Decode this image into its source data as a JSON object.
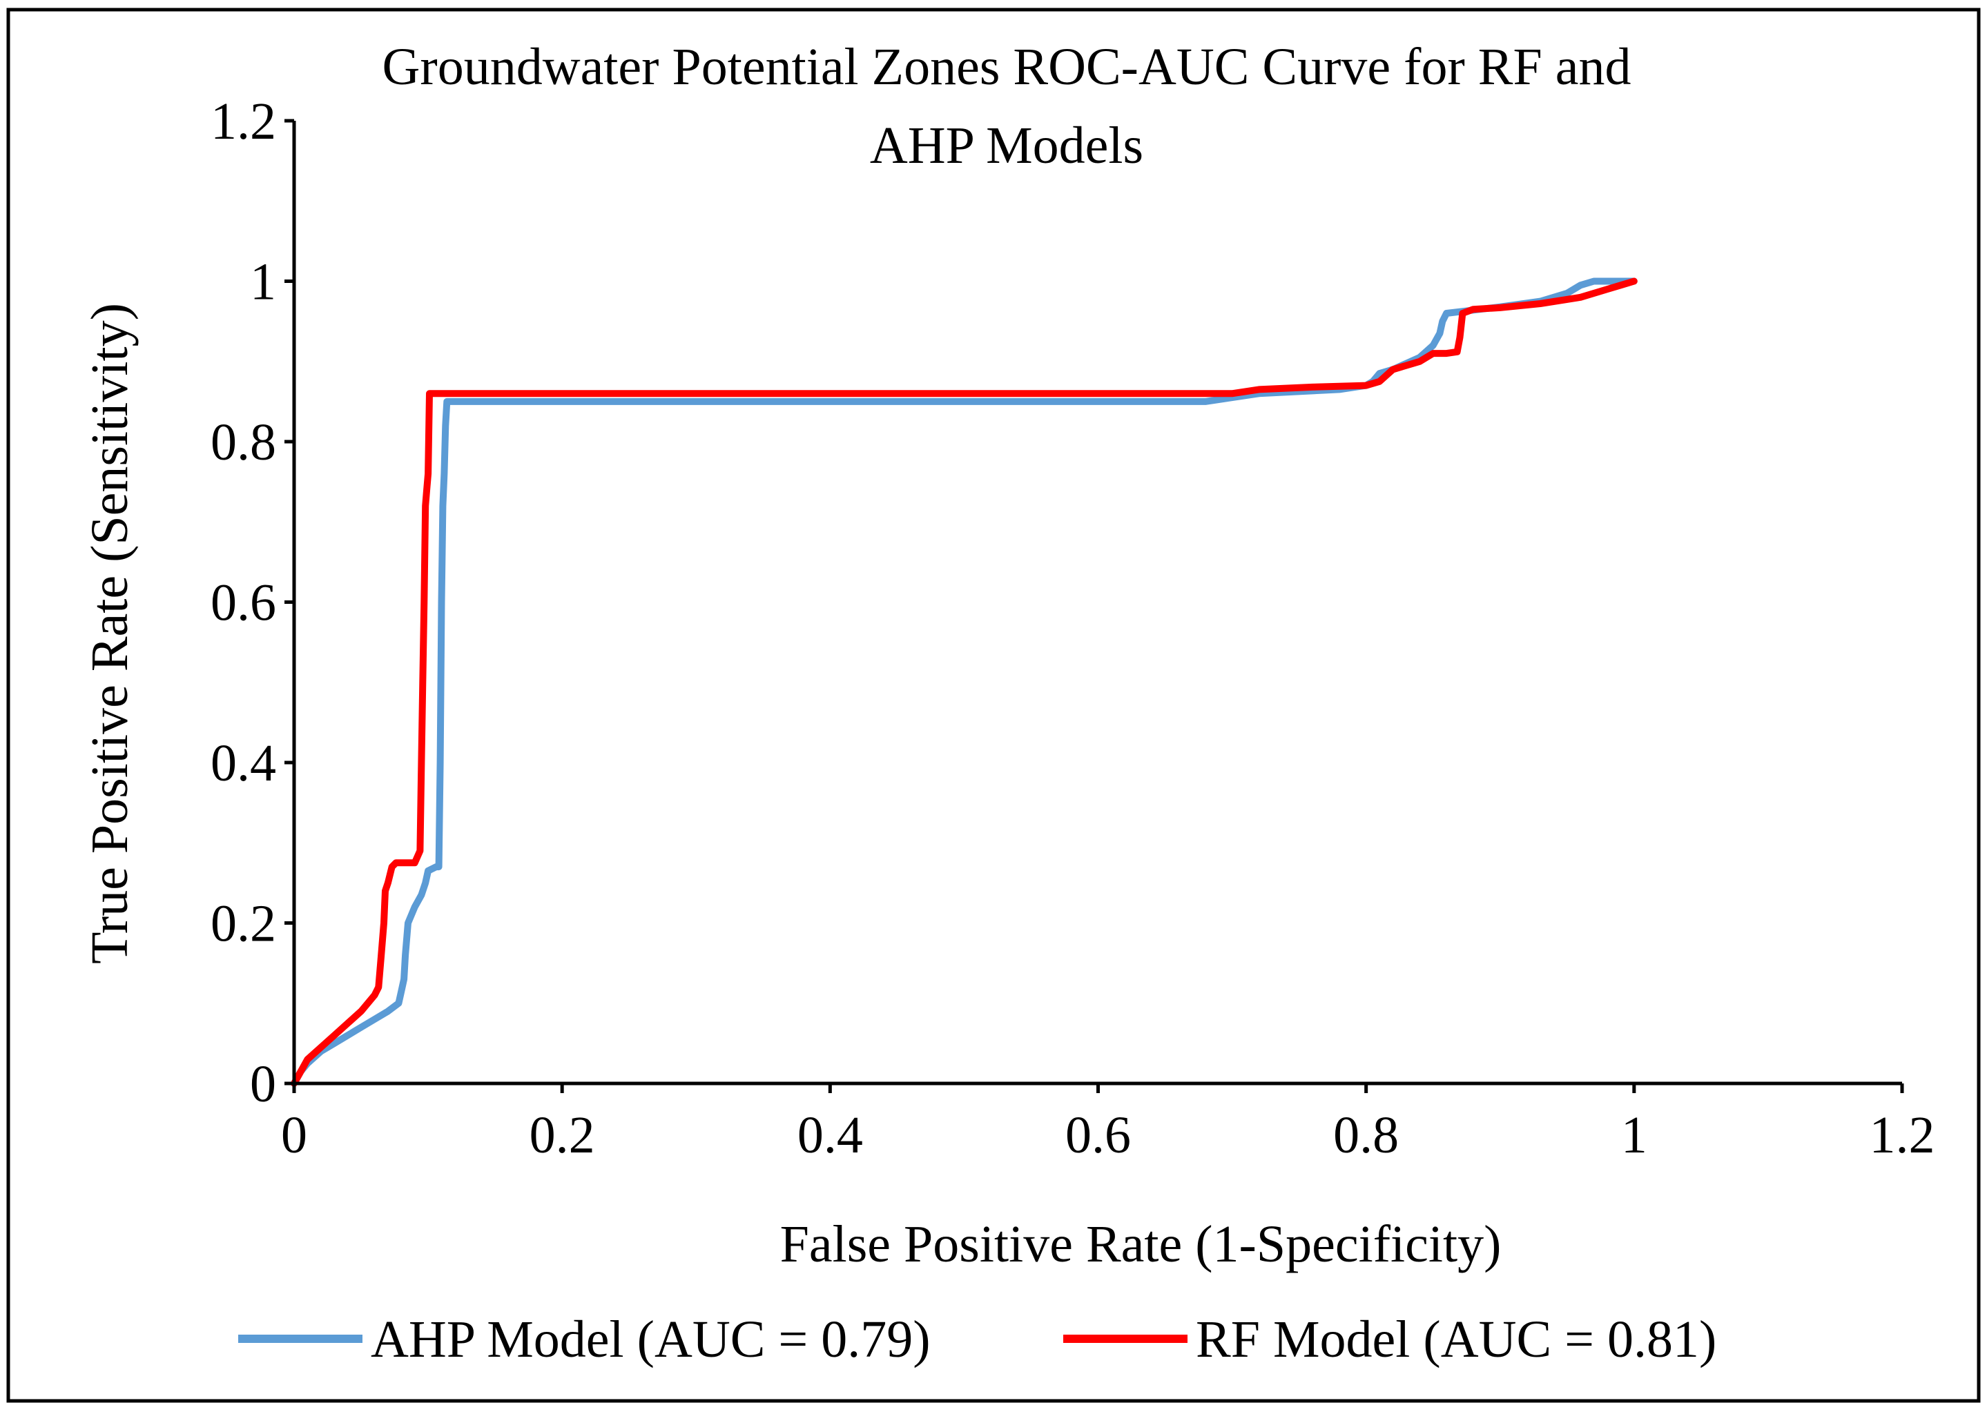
{
  "chart_data": {
    "type": "line",
    "title_lines": [
      "Groundwater Potential Zones ROC-AUC Curve for RF and",
      "AHP Models"
    ],
    "xlabel": "False Positive Rate (1-Specificity)",
    "ylabel": "True Positive Rate (Sensitivity)",
    "xlim": [
      0,
      1.2
    ],
    "ylim": [
      0,
      1.2
    ],
    "x_ticks": [
      0,
      0.2,
      0.4,
      0.6,
      0.8,
      1,
      1.2
    ],
    "y_ticks": [
      0,
      0.2,
      0.4,
      0.6,
      0.8,
      1,
      1.2
    ],
    "x_tick_labels": [
      "0",
      "0.2",
      "0.4",
      "0.6",
      "0.8",
      "1",
      "1.2"
    ],
    "y_tick_labels": [
      "0",
      "0.2",
      "0.4",
      "0.6",
      "0.8",
      "1",
      "1.2"
    ],
    "grid": false,
    "legend_position": "bottom",
    "series": [
      {
        "name": "AHP Model (AUC = 0.79)",
        "color": "#5b9bd5",
        "points": [
          [
            0,
            0
          ],
          [
            0.005,
            0.015
          ],
          [
            0.01,
            0.025
          ],
          [
            0.02,
            0.04
          ],
          [
            0.03,
            0.05
          ],
          [
            0.04,
            0.06
          ],
          [
            0.05,
            0.07
          ],
          [
            0.06,
            0.08
          ],
          [
            0.07,
            0.09
          ],
          [
            0.078,
            0.1
          ],
          [
            0.08,
            0.115
          ],
          [
            0.082,
            0.13
          ],
          [
            0.083,
            0.16
          ],
          [
            0.085,
            0.2
          ],
          [
            0.09,
            0.22
          ],
          [
            0.095,
            0.235
          ],
          [
            0.098,
            0.25
          ],
          [
            0.1,
            0.265
          ],
          [
            0.106,
            0.27
          ],
          [
            0.108,
            0.27
          ],
          [
            0.109,
            0.4
          ],
          [
            0.11,
            0.6
          ],
          [
            0.111,
            0.72
          ],
          [
            0.112,
            0.76
          ],
          [
            0.113,
            0.82
          ],
          [
            0.114,
            0.85
          ],
          [
            0.68,
            0.85
          ],
          [
            0.72,
            0.86
          ],
          [
            0.78,
            0.865
          ],
          [
            0.8,
            0.87
          ],
          [
            0.805,
            0.875
          ],
          [
            0.81,
            0.885
          ],
          [
            0.82,
            0.89
          ],
          [
            0.84,
            0.905
          ],
          [
            0.85,
            0.92
          ],
          [
            0.855,
            0.935
          ],
          [
            0.857,
            0.95
          ],
          [
            0.86,
            0.96
          ],
          [
            0.87,
            0.962
          ],
          [
            0.9,
            0.968
          ],
          [
            0.93,
            0.975
          ],
          [
            0.95,
            0.985
          ],
          [
            0.96,
            0.995
          ],
          [
            0.97,
            1
          ],
          [
            1,
            1
          ]
        ]
      },
      {
        "name": "RF Model (AUC = 0.81)",
        "color": "#ff0000",
        "points": [
          [
            0,
            0
          ],
          [
            0.005,
            0.015
          ],
          [
            0.01,
            0.03
          ],
          [
            0.02,
            0.045
          ],
          [
            0.03,
            0.06
          ],
          [
            0.04,
            0.075
          ],
          [
            0.05,
            0.09
          ],
          [
            0.06,
            0.11
          ],
          [
            0.063,
            0.12
          ],
          [
            0.065,
            0.16
          ],
          [
            0.067,
            0.2
          ],
          [
            0.068,
            0.24
          ],
          [
            0.07,
            0.25
          ],
          [
            0.073,
            0.27
          ],
          [
            0.076,
            0.275
          ],
          [
            0.09,
            0.275
          ],
          [
            0.094,
            0.29
          ],
          [
            0.095,
            0.4
          ],
          [
            0.096,
            0.5
          ],
          [
            0.097,
            0.6
          ],
          [
            0.098,
            0.72
          ],
          [
            0.099,
            0.74
          ],
          [
            0.1,
            0.76
          ],
          [
            0.101,
            0.86
          ],
          [
            0.7,
            0.86
          ],
          [
            0.72,
            0.865
          ],
          [
            0.76,
            0.868
          ],
          [
            0.8,
            0.87
          ],
          [
            0.81,
            0.875
          ],
          [
            0.82,
            0.89
          ],
          [
            0.84,
            0.9
          ],
          [
            0.85,
            0.91
          ],
          [
            0.86,
            0.91
          ],
          [
            0.868,
            0.912
          ],
          [
            0.87,
            0.93
          ],
          [
            0.872,
            0.96
          ],
          [
            0.88,
            0.965
          ],
          [
            0.9,
            0.967
          ],
          [
            0.93,
            0.972
          ],
          [
            0.96,
            0.98
          ],
          [
            0.98,
            0.99
          ],
          [
            0.99,
            0.995
          ],
          [
            1,
            1
          ]
        ]
      }
    ]
  }
}
